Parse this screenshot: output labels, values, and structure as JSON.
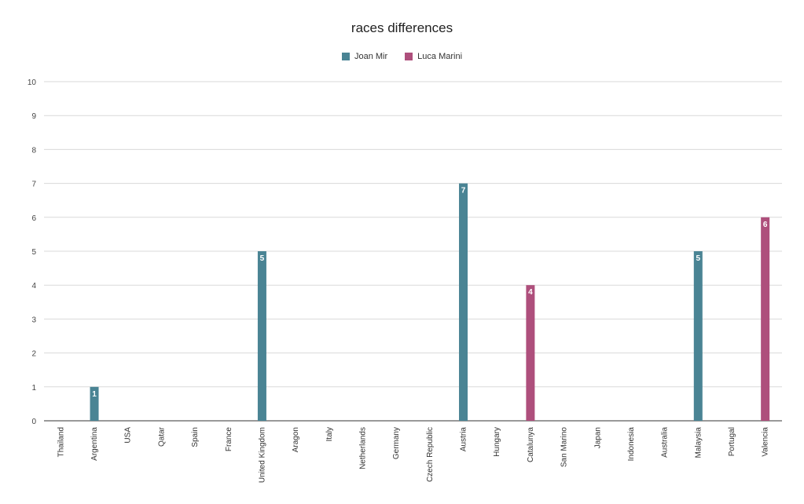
{
  "chart_data": {
    "type": "bar",
    "title": "races differences",
    "xlabel": "",
    "ylabel": "",
    "ylim": [
      0,
      10
    ],
    "yticks": [
      "0",
      "1",
      "2",
      "3",
      "4",
      "5",
      "6",
      "7",
      "8",
      "9",
      "10"
    ],
    "grid": true,
    "legend_position": "top-center",
    "categories": [
      "Thailand",
      "Argentina",
      "USA",
      "Qatar",
      "Spain",
      "France",
      "United Kingdom",
      "Aragon",
      "Italy",
      "Netherlands",
      "Germany",
      "Czech Republic",
      "Austria",
      "Hungary",
      "Catalunya",
      "San Marino",
      "Japan",
      "Indonesia",
      "Australia",
      "Malaysia",
      "Portugal",
      "Valencia"
    ],
    "series": [
      {
        "name": "Joan Mir",
        "color": "#4a8494",
        "values": [
          null,
          1,
          null,
          null,
          null,
          null,
          5,
          null,
          null,
          null,
          null,
          null,
          7,
          null,
          null,
          null,
          null,
          null,
          null,
          5,
          null,
          null
        ]
      },
      {
        "name": "Luca Marini",
        "color": "#ae4f7c",
        "values": [
          null,
          null,
          null,
          null,
          null,
          null,
          null,
          null,
          null,
          null,
          null,
          null,
          null,
          null,
          4,
          null,
          null,
          null,
          null,
          null,
          null,
          6
        ]
      }
    ]
  }
}
